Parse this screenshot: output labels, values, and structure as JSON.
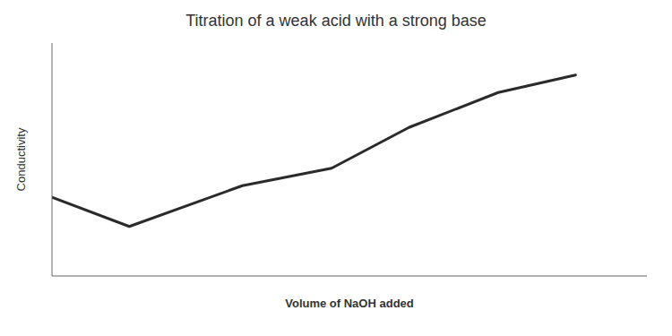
{
  "chart_data": {
    "type": "line",
    "title": "Titration of a weak acid with a strong base",
    "xlabel": "Volume of NaOH added",
    "ylabel": "Conductivity",
    "x": [
      0.0,
      0.13,
      0.32,
      0.47,
      0.6,
      0.75,
      0.88
    ],
    "values": [
      0.52,
      0.42,
      0.56,
      0.62,
      0.76,
      0.88,
      0.94
    ],
    "color": "#2a2a2a",
    "xlim": [
      0.0,
      1.0
    ],
    "ylim": [
      0.25,
      1.05
    ],
    "xticks": [],
    "yticks": [],
    "tick_labels": false,
    "grid": false
  }
}
